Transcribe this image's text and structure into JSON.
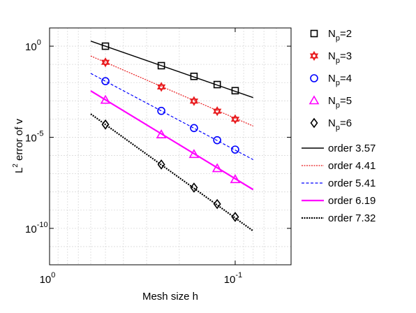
{
  "chart_data": {
    "type": "line",
    "scale": {
      "x": "log",
      "y": "log",
      "x_direction": "reversed"
    },
    "xlabel": "Mesh size h",
    "ylabel": {
      "base": "L",
      "sup": "2",
      "rest": " error of v"
    },
    "xlim": [
      1.0,
      0.05
    ],
    "ylim": [
      1e-12,
      10.0
    ],
    "grid": true,
    "legend_position": "right, outside plot",
    "x_ticks": [
      {
        "value": 1.0,
        "base": "10",
        "exp": "0"
      },
      {
        "value": 0.1,
        "base": "10",
        "exp": "-1"
      }
    ],
    "y_ticks": [
      {
        "value": 1.0,
        "base": "10",
        "exp": "0"
      },
      {
        "value": 1e-05,
        "base": "10",
        "exp": "-5"
      },
      {
        "value": 1e-10,
        "base": "10",
        "exp": "-10"
      }
    ],
    "measured": [
      {
        "label": "N",
        "sub": "p",
        "suffix": "=2",
        "marker": "square",
        "color": "#000000",
        "x": [
          0.5,
          0.25,
          0.1667,
          0.125,
          0.1
        ],
        "y": [
          1.0,
          0.085,
          0.022,
          0.0078,
          0.0036
        ]
      },
      {
        "label": "N",
        "sub": "p",
        "suffix": "=3",
        "marker": "hexagram",
        "color": "#e8191c",
        "x": [
          0.5,
          0.25,
          0.1667,
          0.125,
          0.1
        ],
        "y": [
          0.13,
          0.0058,
          0.00097,
          0.00027,
          9.8e-05
        ]
      },
      {
        "label": "N",
        "sub": "p",
        "suffix": "=4",
        "marker": "circle",
        "color": "#0000ff",
        "x": [
          0.5,
          0.25,
          0.1667,
          0.125,
          0.1
        ],
        "y": [
          0.012,
          0.00028,
          3.2e-05,
          6.9e-06,
          2.1e-06
        ]
      },
      {
        "label": "N",
        "sub": "p",
        "suffix": "=5",
        "marker": "triangle",
        "color": "#ff00ff",
        "x": [
          0.5,
          0.25,
          0.1667,
          0.125,
          0.1
        ],
        "y": [
          0.0011,
          1.4e-05,
          1.16e-06,
          1.95e-07,
          4.87e-08
        ]
      },
      {
        "label": "N",
        "sub": "p",
        "suffix": "=6",
        "marker": "diamond",
        "color": "#000000",
        "x": [
          0.5,
          0.25,
          0.1667,
          0.125,
          0.1
        ],
        "y": [
          5e-05,
          3.2e-07,
          1.72e-08,
          2.16e-09,
          4.25e-10
        ]
      }
    ],
    "fits": [
      {
        "label": "order 3.57",
        "color": "#000000",
        "dash": "solid",
        "x": [
          0.6,
          0.08
        ],
        "y": [
          1.9,
          0.0015
        ]
      },
      {
        "label": "order 4.41",
        "color": "#e8191c",
        "dash": "dotted",
        "x": [
          0.6,
          0.08
        ],
        "y": [
          0.29,
          4.15e-05
        ]
      },
      {
        "label": "order 5.41",
        "color": "#0000ff",
        "dash": "dashed",
        "x": [
          0.6,
          0.08
        ],
        "y": [
          0.032,
          5.91e-07
        ]
      },
      {
        "label": "order 6.19",
        "color": "#ff00ff",
        "dash": "solid-thick",
        "x": [
          0.6,
          0.08
        ],
        "y": [
          0.0035,
          1.34e-08
        ]
      },
      {
        "label": "order 7.32",
        "color": "#000000",
        "dash": "dotted-thick",
        "x": [
          0.6,
          0.08
        ],
        "y": [
          0.00019,
          7.22e-11
        ]
      }
    ]
  }
}
